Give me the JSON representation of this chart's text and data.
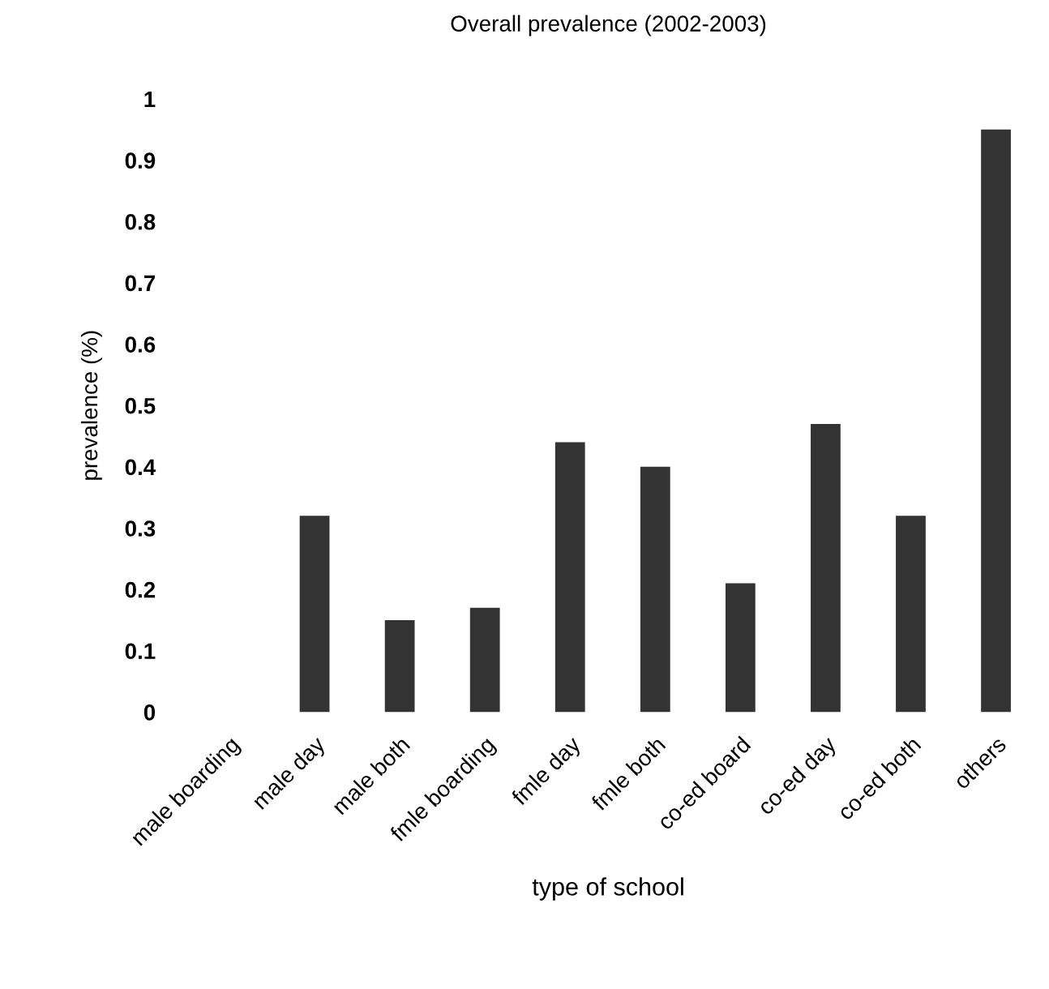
{
  "chart_data": {
    "type": "bar",
    "title": "Overall prevalence (2002-2003)",
    "xlabel": "type of school",
    "ylabel": "prevalence (%)",
    "categories": [
      "male boarding",
      "male day",
      "male both",
      "fmle boarding",
      "fmle day",
      "fmle both",
      "co-ed board",
      "co-ed day",
      "co-ed both",
      "others"
    ],
    "values": [
      0,
      0.32,
      0.15,
      0.17,
      0.44,
      0.4,
      0.21,
      0.47,
      0.32,
      0.95
    ],
    "color": "#333333",
    "ylim": [
      0,
      1
    ],
    "yticks": [
      0,
      0.1,
      0.2,
      0.3,
      0.4,
      0.5,
      0.6,
      0.7,
      0.8,
      0.9,
      1
    ],
    "grid": false
  }
}
